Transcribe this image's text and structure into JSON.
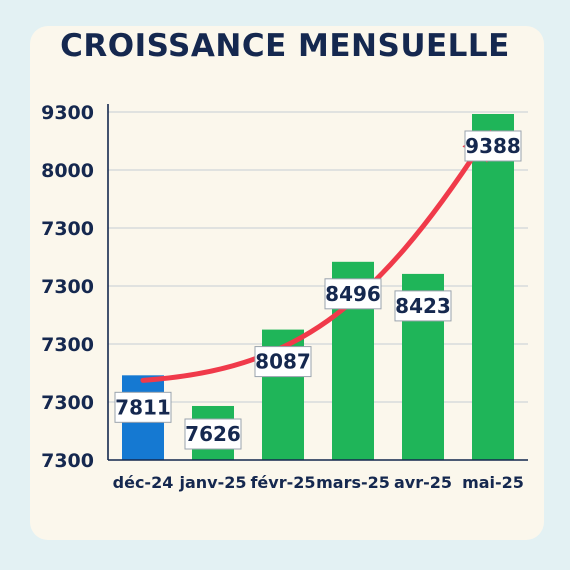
{
  "chart_data": {
    "type": "bar",
    "title": "CROISSANCE MENSUELLE",
    "categories": [
      "déc-24",
      "janv-25",
      "févr-25",
      "mars-25",
      "avr-25",
      "mai-25"
    ],
    "values": [
      7811,
      7626,
      8087,
      8496,
      8423,
      9388
    ],
    "data_labels": [
      "7811",
      "7626",
      "8087",
      "8496",
      "8423",
      "9388"
    ],
    "ytick_labels": [
      "7300",
      "7300",
      "7300",
      "7300",
      "7300",
      "8000",
      "9300"
    ],
    "ylim": [
      7300,
      9400
    ],
    "grid": true,
    "legend": "none",
    "colors": {
      "highlight_bar": "#1579d2",
      "bar": "#1fb559",
      "trend_arrow": "#f03a4a",
      "title": "#15284f"
    },
    "annotations": [
      "trend arrow rising from déc-24 to mai-25"
    ]
  }
}
